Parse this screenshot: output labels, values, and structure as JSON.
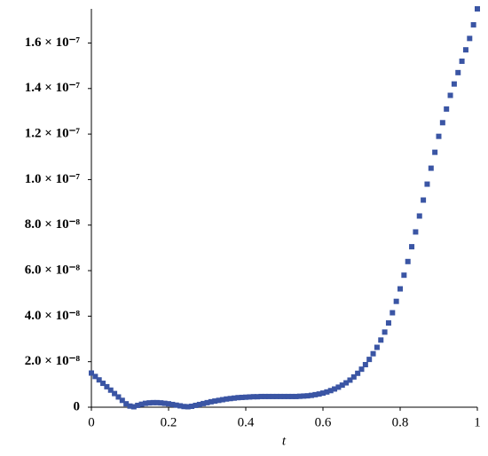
{
  "chart_data": {
    "type": "scatter",
    "x_label": "t",
    "color": "#3a55a4",
    "x": [
      0,
      0.01,
      0.02,
      0.03,
      0.04,
      0.05,
      0.06,
      0.07,
      0.08,
      0.09,
      0.1,
      0.11,
      0.12,
      0.13,
      0.14,
      0.15,
      0.16,
      0.17,
      0.18,
      0.19,
      0.2,
      0.21,
      0.22,
      0.23,
      0.24,
      0.25,
      0.26,
      0.27,
      0.28,
      0.29,
      0.3,
      0.31,
      0.32,
      0.33,
      0.34,
      0.35,
      0.36,
      0.37,
      0.38,
      0.39,
      0.4,
      0.41,
      0.42,
      0.43,
      0.44,
      0.45,
      0.46,
      0.47,
      0.48,
      0.49,
      0.5,
      0.51,
      0.52,
      0.53,
      0.54,
      0.55,
      0.56,
      0.57,
      0.58,
      0.59,
      0.6,
      0.61,
      0.62,
      0.63,
      0.64,
      0.65,
      0.66,
      0.67,
      0.68,
      0.69,
      0.7,
      0.71,
      0.72,
      0.73,
      0.74,
      0.75,
      0.76,
      0.77,
      0.78,
      0.79,
      0.8,
      0.81,
      0.82,
      0.83,
      0.84,
      0.85,
      0.86,
      0.87,
      0.88,
      0.89,
      0.9,
      0.91,
      0.92,
      0.93,
      0.94,
      0.95,
      0.96,
      0.97,
      0.98,
      0.99,
      1
    ],
    "values": [
      1.5e-08,
      1.35e-08,
      1.2e-08,
      1.05e-08,
      9e-09,
      7.5e-09,
      6e-09,
      4.5e-09,
      3e-09,
      1.5e-09,
      5e-10,
      2e-10,
      8e-10,
      1.3e-09,
      1.7e-09,
      1.9e-09,
      2e-09,
      2e-09,
      1.9e-09,
      1.7e-09,
      1.5e-09,
      1.2e-09,
      9e-10,
      6e-10,
      3e-10,
      2e-10,
      4e-10,
      8e-10,
      1.2e-09,
      1.6e-09,
      2e-09,
      2.4e-09,
      2.7e-09,
      3e-09,
      3.3e-09,
      3.6e-09,
      3.8e-09,
      4e-09,
      4.2e-09,
      4.3e-09,
      4.4e-09,
      4.5e-09,
      4.6e-09,
      4.6e-09,
      4.7e-09,
      4.7e-09,
      4.7e-09,
      4.7e-09,
      4.7e-09,
      4.7e-09,
      4.7e-09,
      4.7e-09,
      4.7e-09,
      4.7e-09,
      4.8e-09,
      4.9e-09,
      5e-09,
      5.2e-09,
      5.5e-09,
      5.8e-09,
      6.2e-09,
      6.7e-09,
      7.3e-09,
      8e-09,
      8.8e-09,
      9.7e-09,
      1.07e-08,
      1.19e-08,
      1.33e-08,
      1.49e-08,
      1.67e-08,
      1.87e-08,
      2.1e-08,
      2.35e-08,
      2.63e-08,
      2.95e-08,
      3.3e-08,
      3.7e-08,
      4.15e-08,
      4.65e-08,
      5.2e-08,
      5.8e-08,
      6.4e-08,
      7.05e-08,
      7.7e-08,
      8.4e-08,
      9.1e-08,
      9.8e-08,
      1.05e-07,
      1.12e-07,
      1.19e-07,
      1.25e-07,
      1.31e-07,
      1.37e-07,
      1.42e-07,
      1.47e-07,
      1.52e-07,
      1.57e-07,
      1.62e-07,
      1.68e-07,
      1.75e-07
    ],
    "xlim": [
      0,
      1
    ],
    "xticks": [
      0,
      0.2,
      0.4,
      0.6,
      0.8,
      1
    ],
    "ylim": [
      0,
      1.75e-07
    ],
    "yticks": [
      0,
      {
        "value": 2e-08,
        "label": "2.0 × 10⁻⁸"
      },
      {
        "value": 4e-08,
        "label": "4.0 × 10⁻⁸"
      },
      {
        "value": 6e-08,
        "label": "6.0 × 10⁻⁸"
      },
      {
        "value": 8e-08,
        "label": "8.0 × 10⁻⁸"
      },
      {
        "value": 1e-07,
        "label": "1.0 × 10⁻⁷"
      },
      {
        "value": 1.2e-07,
        "label": "1.2 × 10⁻⁷"
      },
      {
        "value": 1.4e-07,
        "label": "1.4 × 10⁻⁷"
      },
      {
        "value": 1.6e-07,
        "label": "1.6 × 10⁻⁷"
      }
    ],
    "grid": false
  }
}
